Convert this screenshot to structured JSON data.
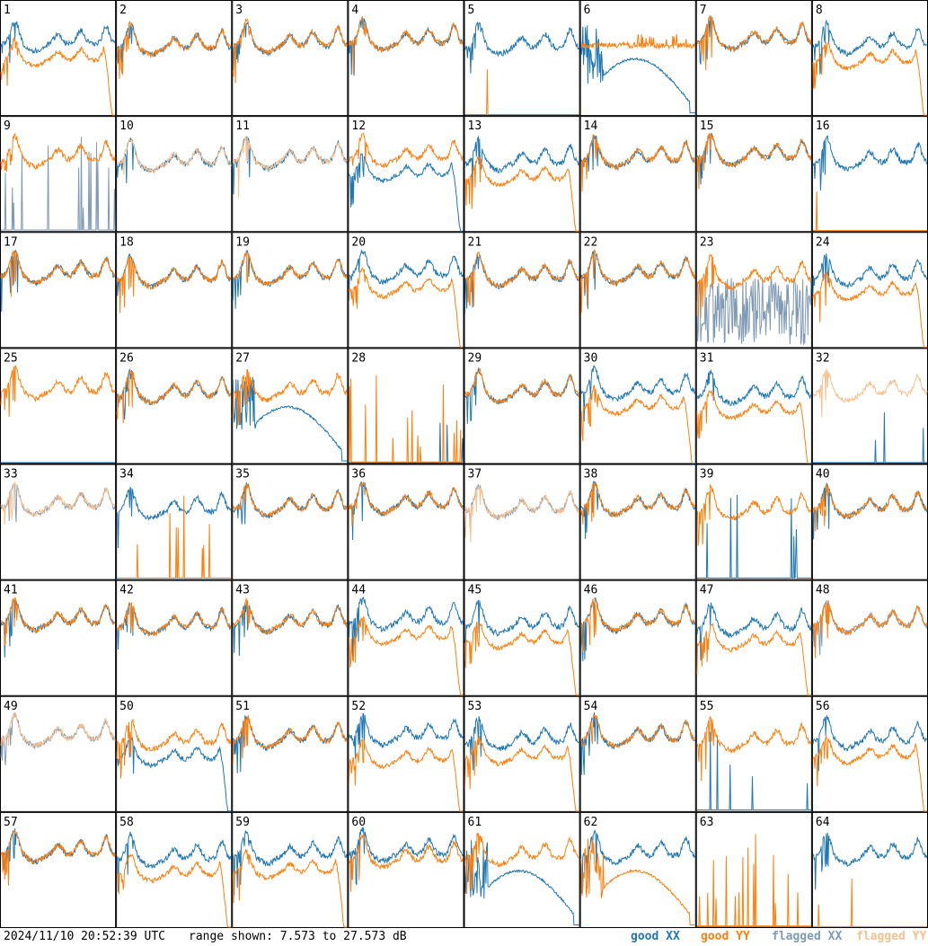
{
  "footer": {
    "timestamp": "2024/11/10 20:52:39 UTC",
    "range_label": "range shown: 7.573 to 27.573 dB"
  },
  "legend": [
    {
      "label": "good XX",
      "color": "#1f77b4"
    },
    {
      "label": "good YY",
      "color": "#ff7f0e"
    },
    {
      "label": "flagged XX",
      "color": "#7f9ab5"
    },
    {
      "label": "flagged YY",
      "color": "#f7c08f"
    }
  ],
  "chart_data": {
    "type": "line",
    "layout": "8x8 small-multiples grid of per-antenna spectra",
    "ylim": [
      7.573,
      27.573
    ],
    "yunit": "dB",
    "series_names": [
      "XX",
      "YY"
    ],
    "panels": [
      {
        "id": "1",
        "xx": "normal",
        "yy": "droop"
      },
      {
        "id": "2",
        "xx": "normal",
        "yy": "normal"
      },
      {
        "id": "3",
        "xx": "normal",
        "yy": "normal"
      },
      {
        "id": "4",
        "xx": "normal",
        "yy": "normal"
      },
      {
        "id": "5",
        "xx": "normal",
        "yy": "dead"
      },
      {
        "id": "6",
        "xx": "bump",
        "yy": "high"
      },
      {
        "id": "7",
        "xx": "normal",
        "yy": "normal"
      },
      {
        "id": "8",
        "xx": "normal",
        "yy": "droop"
      },
      {
        "id": "9",
        "xx": "spikes_flag",
        "yy": "normal"
      },
      {
        "id": "10",
        "xx": "normal",
        "yy": "normal",
        "yy_flagged": true
      },
      {
        "id": "11",
        "xx": "normal",
        "yy": "normal",
        "yy_flagged": true
      },
      {
        "id": "12",
        "xx": "droop",
        "yy": "normal"
      },
      {
        "id": "13",
        "xx": "normal",
        "yy": "droop"
      },
      {
        "id": "14",
        "xx": "normal",
        "yy": "normal"
      },
      {
        "id": "15",
        "xx": "normal",
        "yy": "normal"
      },
      {
        "id": "16",
        "xx": "normal",
        "yy": "dead"
      },
      {
        "id": "17",
        "xx": "normal",
        "yy": "normal"
      },
      {
        "id": "18",
        "xx": "normal",
        "yy": "normal"
      },
      {
        "id": "19",
        "xx": "normal",
        "yy": "normal"
      },
      {
        "id": "20",
        "xx": "normal",
        "yy": "droop"
      },
      {
        "id": "21",
        "xx": "normal",
        "yy": "normal"
      },
      {
        "id": "22",
        "xx": "normal",
        "yy": "normal"
      },
      {
        "id": "23",
        "xx": "noise_flag",
        "yy": "normal"
      },
      {
        "id": "24",
        "xx": "normal",
        "yy": "droop"
      },
      {
        "id": "25",
        "xx": "dead",
        "yy": "normal"
      },
      {
        "id": "26",
        "xx": "normal",
        "yy": "normal"
      },
      {
        "id": "27",
        "xx": "bump",
        "yy": "normal"
      },
      {
        "id": "28",
        "xx": "dead",
        "yy": "spikes"
      },
      {
        "id": "29",
        "xx": "normal",
        "yy": "normal"
      },
      {
        "id": "30",
        "xx": "normal",
        "yy": "droop"
      },
      {
        "id": "31",
        "xx": "normal",
        "yy": "droop"
      },
      {
        "id": "32",
        "xx": "dead",
        "yy": "normal",
        "yy_flagged": true
      },
      {
        "id": "33",
        "xx": "normal",
        "yy": "normal",
        "xx_flagged": true,
        "yy_flagged": true
      },
      {
        "id": "34",
        "xx": "normal",
        "yy": "spikes"
      },
      {
        "id": "35",
        "xx": "normal",
        "yy": "normal"
      },
      {
        "id": "36",
        "xx": "normal",
        "yy": "normal"
      },
      {
        "id": "37",
        "xx": "normal",
        "yy": "normal",
        "xx_flagged": true,
        "yy_flagged": true
      },
      {
        "id": "38",
        "xx": "normal",
        "yy": "normal"
      },
      {
        "id": "39",
        "xx": "spikes",
        "yy": "normal"
      },
      {
        "id": "40",
        "xx": "normal",
        "yy": "normal"
      },
      {
        "id": "41",
        "xx": "normal",
        "yy": "normal"
      },
      {
        "id": "42",
        "xx": "normal",
        "yy": "normal"
      },
      {
        "id": "43",
        "xx": "normal",
        "yy": "normal"
      },
      {
        "id": "44",
        "xx": "normal",
        "yy": "droop"
      },
      {
        "id": "45",
        "xx": "normal",
        "yy": "droop"
      },
      {
        "id": "46",
        "xx": "normal",
        "yy": "normal"
      },
      {
        "id": "47",
        "xx": "normal",
        "yy": "droop"
      },
      {
        "id": "48",
        "xx": "normal",
        "yy": "normal",
        "xx_flagged": true
      },
      {
        "id": "49",
        "xx": "normal",
        "yy": "normal",
        "xx_flagged": true,
        "yy_flagged": true
      },
      {
        "id": "50",
        "xx": "droop",
        "yy": "normal"
      },
      {
        "id": "51",
        "xx": "normal",
        "yy": "normal"
      },
      {
        "id": "52",
        "xx": "normal",
        "yy": "droop"
      },
      {
        "id": "53",
        "xx": "normal",
        "yy": "droop"
      },
      {
        "id": "54",
        "xx": "normal",
        "yy": "normal"
      },
      {
        "id": "55",
        "xx": "spikes",
        "yy": "normal"
      },
      {
        "id": "56",
        "xx": "normal",
        "yy": "droop"
      },
      {
        "id": "57",
        "xx": "normal",
        "yy": "normal"
      },
      {
        "id": "58",
        "xx": "normal",
        "yy": "droop"
      },
      {
        "id": "59",
        "xx": "normal",
        "yy": "droop"
      },
      {
        "id": "60",
        "xx": "normal",
        "yy": "normal"
      },
      {
        "id": "61",
        "xx": "bump",
        "yy": "normal"
      },
      {
        "id": "62",
        "xx": "normal",
        "yy": "bump"
      },
      {
        "id": "63",
        "xx": "dead",
        "yy": "spikes"
      },
      {
        "id": "64",
        "xx": "normal",
        "yy": "dead"
      }
    ]
  }
}
